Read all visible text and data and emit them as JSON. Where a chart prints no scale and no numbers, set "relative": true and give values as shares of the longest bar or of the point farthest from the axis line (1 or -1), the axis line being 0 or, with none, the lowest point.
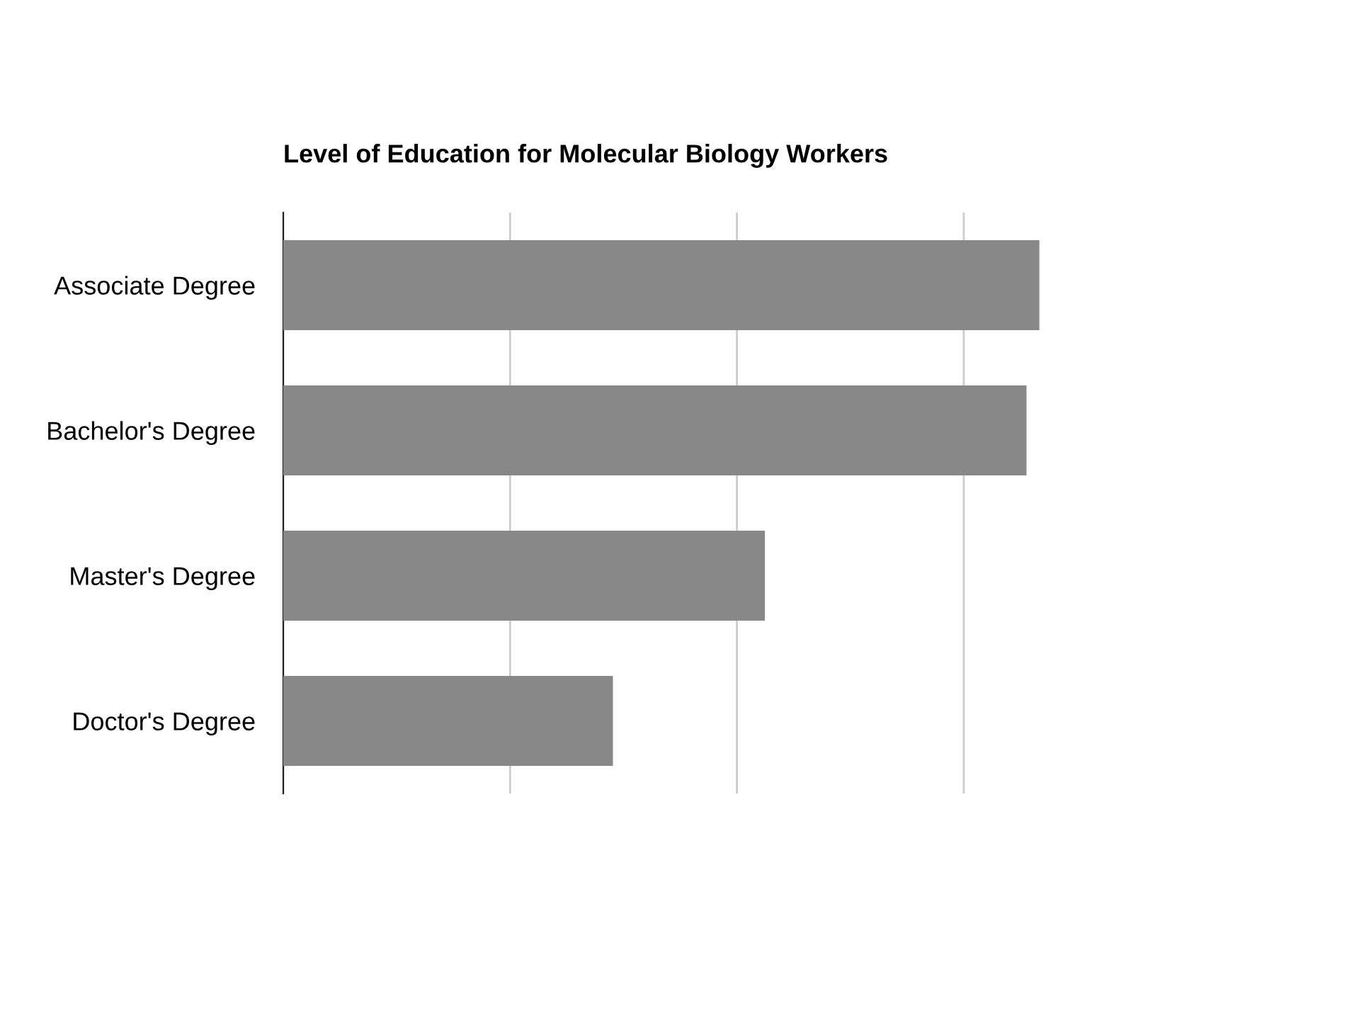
{
  "chart_data": {
    "type": "bar",
    "orientation": "horizontal",
    "relative": true,
    "title": "Level of Education for Molecular Biology Workers",
    "categories": [
      "Associate Degree",
      "Bachelor's Degree",
      "Master's Degree",
      "Doctor's Degree"
    ],
    "values": [
      1,
      0.983,
      0.637,
      0.436
    ],
    "color": "#888888",
    "grid": "x"
  }
}
